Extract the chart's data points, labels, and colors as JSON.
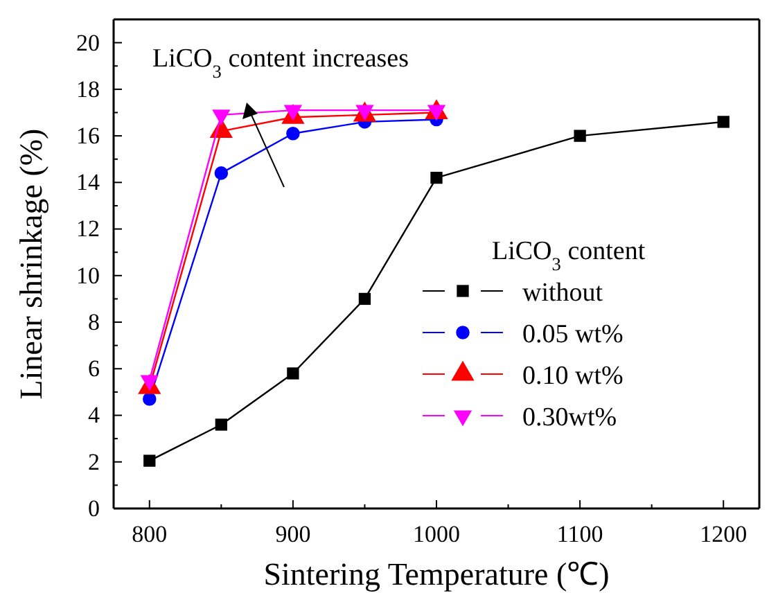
{
  "chart_data": {
    "type": "line",
    "xlabel": "Sintering Temperature (℃)",
    "ylabel": "Linear shrinkage (%)",
    "legend_title": "LiCO$_{3}$ content",
    "annotations": [
      "LiCO$_{3}$ content increases"
    ],
    "xlim": [
      775,
      1225
    ],
    "xticks": [
      800,
      900,
      1000,
      1100,
      1200
    ],
    "ylim": [
      0,
      21
    ],
    "yticks": [
      0,
      2,
      4,
      6,
      8,
      10,
      12,
      14,
      16,
      18,
      20
    ],
    "grid": false,
    "legend": "right",
    "line_style": "solid",
    "series": [
      {
        "name": "without",
        "color": "#000000",
        "marker": "square",
        "x": [
          800,
          850,
          900,
          950,
          1000,
          1100,
          1200
        ],
        "values": [
          2.05,
          3.6,
          5.8,
          9.0,
          14.2,
          16.0,
          16.6
        ]
      },
      {
        "name": "0.05 wt%",
        "color": "#0000ff",
        "marker": "circle",
        "x": [
          800,
          850,
          900,
          950,
          1000
        ],
        "values": [
          4.7,
          14.4,
          16.1,
          16.6,
          16.7
        ]
      },
      {
        "name": "0.10 wt%",
        "color": "#ff0000",
        "marker": "triangle",
        "x": [
          800,
          850,
          900,
          950,
          1000
        ],
        "values": [
          5.2,
          16.2,
          16.8,
          16.9,
          17.0
        ]
      },
      {
        "name": "0.30wt%",
        "color": "#ff00ff",
        "marker": "triangle-down",
        "x": [
          800,
          850,
          900,
          950,
          1000
        ],
        "values": [
          5.5,
          16.9,
          17.1,
          17.1,
          17.1
        ]
      }
    ]
  }
}
